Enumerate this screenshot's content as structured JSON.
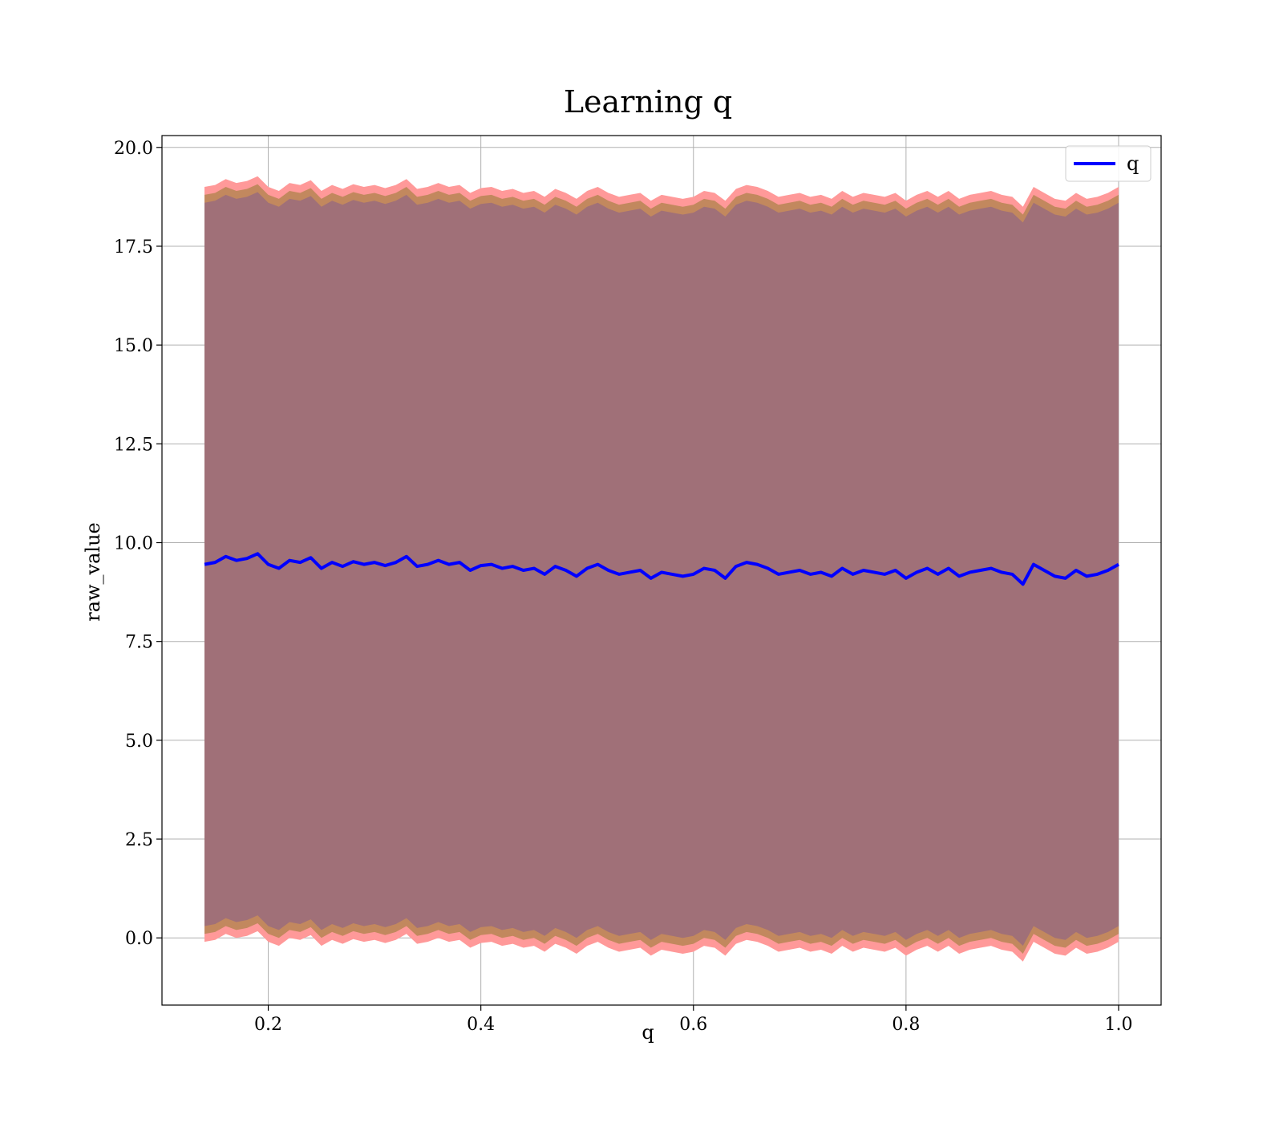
{
  "chart_data": {
    "type": "line",
    "title": "Learning q",
    "xlabel": "q",
    "ylabel": "raw_value",
    "xlim": [
      0.1,
      1.04
    ],
    "ylim": [
      -1.7,
      20.3
    ],
    "xticks": [
      0.2,
      0.4,
      0.6,
      0.8,
      1.0
    ],
    "xtick_labels": [
      "0.2",
      "0.4",
      "0.6",
      "0.8",
      "1.0"
    ],
    "yticks": [
      0.0,
      2.5,
      5.0,
      7.5,
      10.0,
      12.5,
      15.0,
      17.5,
      20.0
    ],
    "ytick_labels": [
      "0.0",
      "2.5",
      "5.0",
      "7.5",
      "10.0",
      "12.5",
      "15.0",
      "17.5",
      "20.0"
    ],
    "grid": true,
    "legend": {
      "position": "top-right",
      "entries": [
        "q"
      ]
    },
    "colors": {
      "line": "#0000ff",
      "band_outer": "#ff9999",
      "band_middle": "#c2885e",
      "band_inner": "#a07078",
      "grid": "#b0b0b0"
    },
    "series": [
      {
        "name": "q",
        "x": [
          0.14,
          0.15,
          0.16,
          0.17,
          0.18,
          0.19,
          0.2,
          0.21,
          0.22,
          0.23,
          0.24,
          0.25,
          0.26,
          0.27,
          0.28,
          0.29,
          0.3,
          0.31,
          0.32,
          0.33,
          0.34,
          0.35,
          0.36,
          0.37,
          0.38,
          0.39,
          0.4,
          0.41,
          0.42,
          0.43,
          0.44,
          0.45,
          0.46,
          0.47,
          0.48,
          0.49,
          0.5,
          0.51,
          0.52,
          0.53,
          0.54,
          0.55,
          0.56,
          0.57,
          0.58,
          0.59,
          0.6,
          0.61,
          0.62,
          0.63,
          0.64,
          0.65,
          0.66,
          0.67,
          0.68,
          0.69,
          0.7,
          0.71,
          0.72,
          0.73,
          0.74,
          0.75,
          0.76,
          0.77,
          0.78,
          0.79,
          0.8,
          0.81,
          0.82,
          0.83,
          0.84,
          0.85,
          0.86,
          0.87,
          0.88,
          0.89,
          0.9,
          0.91,
          0.92,
          0.93,
          0.94,
          0.95,
          0.96,
          0.97,
          0.98,
          0.99,
          1.0
        ],
        "y": [
          9.45,
          9.5,
          9.65,
          9.55,
          9.6,
          9.72,
          9.45,
          9.35,
          9.55,
          9.5,
          9.62,
          9.35,
          9.5,
          9.4,
          9.52,
          9.45,
          9.5,
          9.42,
          9.5,
          9.65,
          9.4,
          9.45,
          9.55,
          9.45,
          9.5,
          9.3,
          9.42,
          9.45,
          9.35,
          9.4,
          9.3,
          9.35,
          9.2,
          9.4,
          9.3,
          9.15,
          9.35,
          9.45,
          9.3,
          9.2,
          9.25,
          9.3,
          9.1,
          9.25,
          9.2,
          9.15,
          9.2,
          9.35,
          9.3,
          9.1,
          9.4,
          9.5,
          9.45,
          9.35,
          9.2,
          9.25,
          9.3,
          9.2,
          9.25,
          9.15,
          9.35,
          9.2,
          9.3,
          9.25,
          9.2,
          9.3,
          9.1,
          9.25,
          9.35,
          9.2,
          9.35,
          9.15,
          9.25,
          9.3,
          9.35,
          9.25,
          9.2,
          8.95,
          9.45,
          9.3,
          9.15,
          9.1,
          9.3,
          9.15,
          9.2,
          9.3,
          9.45
        ]
      }
    ],
    "bands": [
      {
        "offset_upper": 9.55,
        "offset_lower": 9.55
      },
      {
        "offset_upper": 9.35,
        "offset_lower": 9.35
      },
      {
        "offset_upper": 9.15,
        "offset_lower": 9.15
      }
    ]
  }
}
